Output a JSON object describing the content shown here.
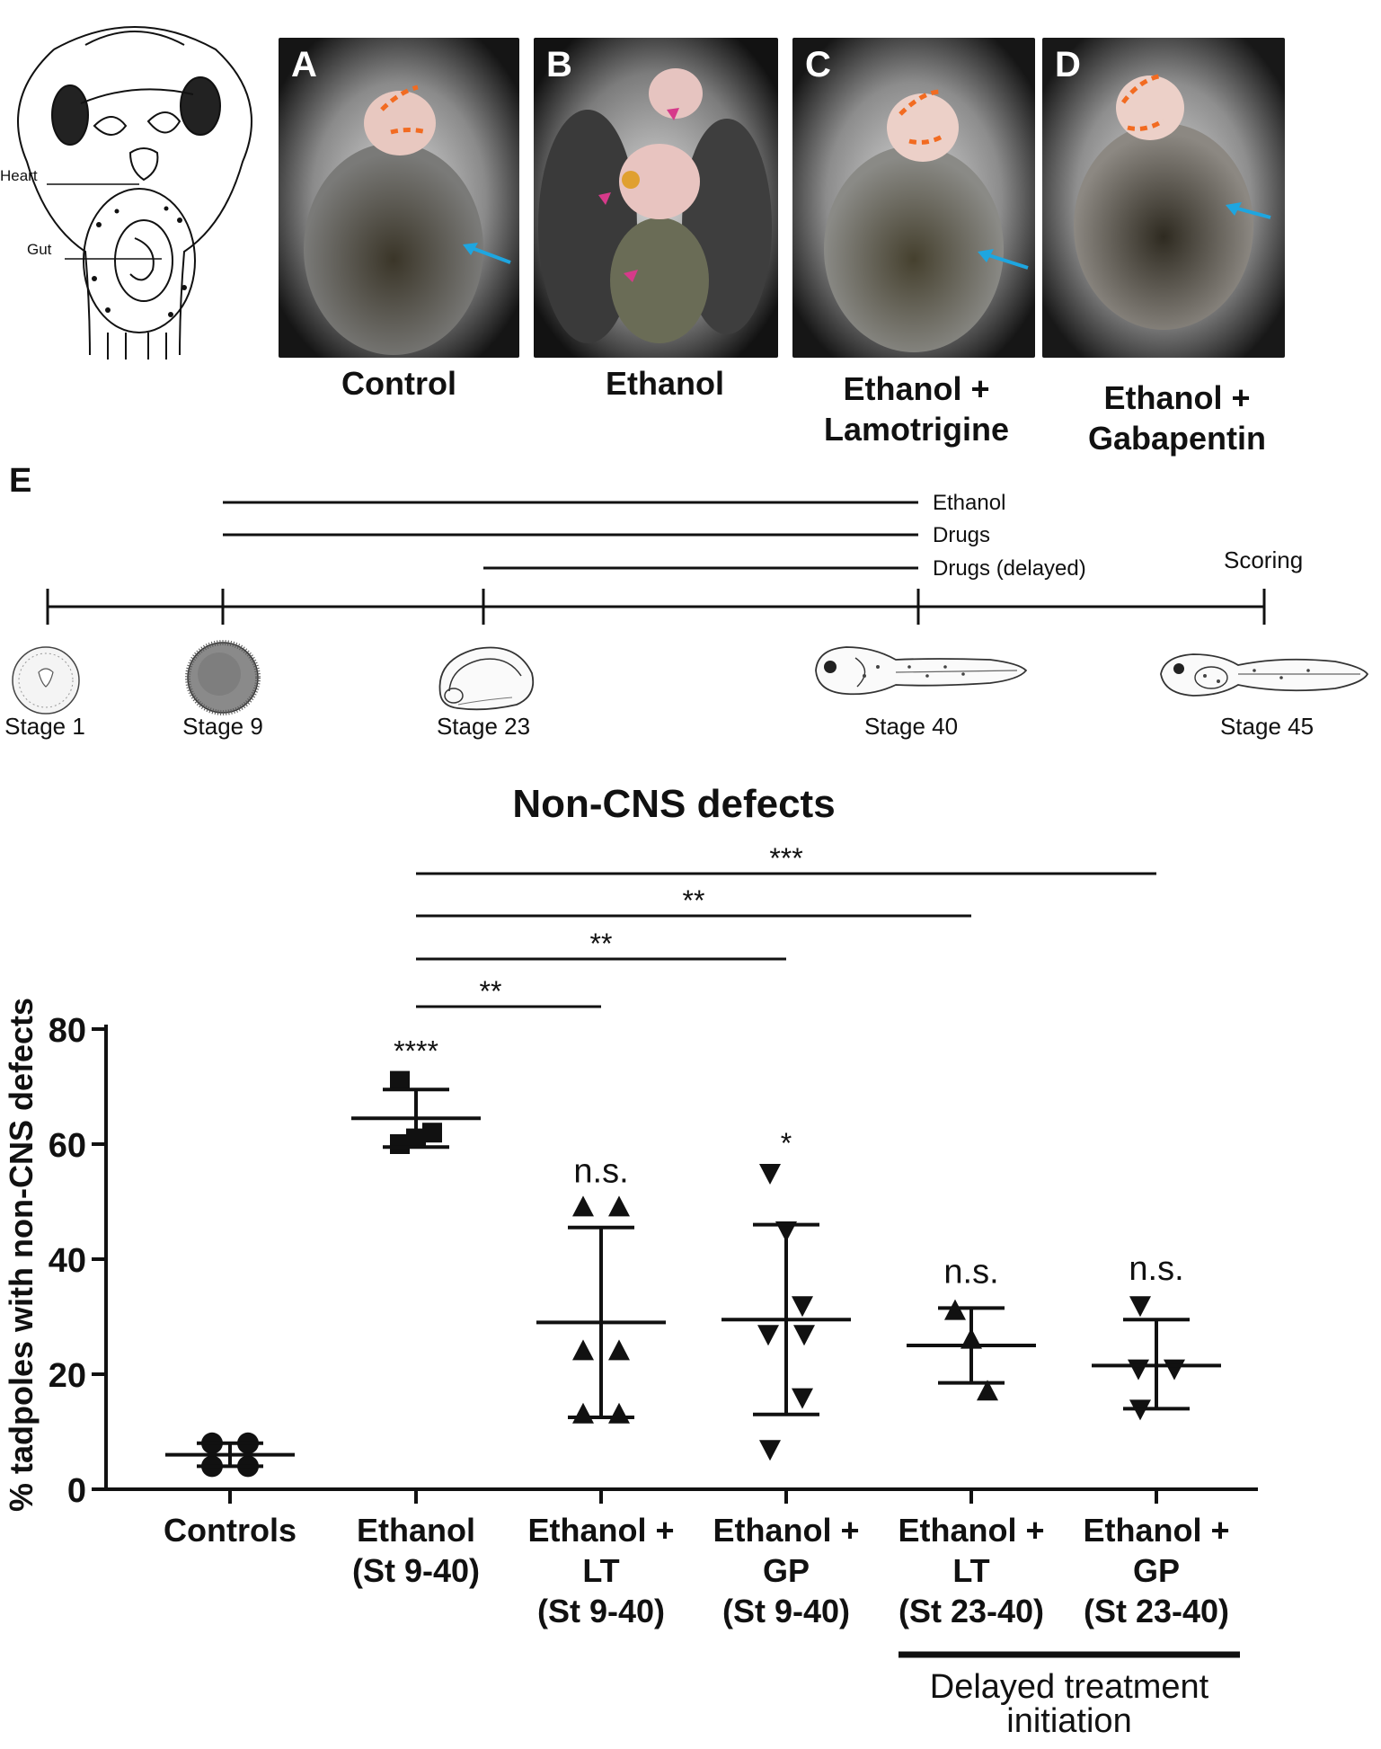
{
  "top_figure": {
    "schematic_labels": {
      "heart": "Heart",
      "gut": "Gut"
    },
    "panels": [
      {
        "letter": "A",
        "caption": [
          "Control"
        ]
      },
      {
        "letter": "B",
        "caption": [
          "Ethanol"
        ]
      },
      {
        "letter": "C",
        "caption": [
          "Ethanol +",
          "Lamotrigine"
        ]
      },
      {
        "letter": "D",
        "caption": [
          "Ethanol +",
          "Gabapentin"
        ]
      }
    ]
  },
  "timeline": {
    "panel_letter": "E",
    "treatments": [
      "Ethanol",
      "Drugs",
      "Drugs (delayed)"
    ],
    "scoring_label": "Scoring",
    "stages": [
      "Stage 1",
      "Stage 9",
      "Stage 23",
      "Stage 40",
      "Stage 45"
    ]
  },
  "chart_data": {
    "type": "scatter",
    "title": "Non-CNS defects",
    "ylabel": "% tadpoles with non-CNS defects",
    "ylim": [
      0,
      80
    ],
    "yticks": [
      0,
      20,
      40,
      60,
      80
    ],
    "categories": [
      [
        "Controls"
      ],
      [
        "Ethanol",
        "(St 9-40)"
      ],
      [
        "Ethanol +",
        "LT",
        "(St 9-40)"
      ],
      [
        "Ethanol +",
        "GP",
        "(St 9-40)"
      ],
      [
        "Ethanol +",
        "LT",
        "(St 23-40)"
      ],
      [
        "Ethanol +",
        "GP",
        "(St 23-40)"
      ]
    ],
    "groups": [
      {
        "marker": "circle",
        "points": [
          4,
          4,
          8,
          8
        ],
        "mean": 6,
        "err_low": 4,
        "err_high": 8,
        "annotation": ""
      },
      {
        "marker": "square",
        "points": [
          71,
          61,
          62,
          60
        ],
        "mean": 64.5,
        "err_low": 59.5,
        "err_high": 69.5,
        "annotation": "****"
      },
      {
        "marker": "triangle-up",
        "points": [
          49,
          49,
          24,
          24,
          13,
          13
        ],
        "mean": 29,
        "err_low": 12.5,
        "err_high": 45.5,
        "annotation": "n.s."
      },
      {
        "marker": "triangle-down",
        "points": [
          55,
          45,
          32,
          27,
          27,
          16,
          7
        ],
        "mean": 29.5,
        "err_low": 13,
        "err_high": 46,
        "annotation": "*"
      },
      {
        "marker": "triangle-up",
        "points": [
          31,
          26,
          17
        ],
        "mean": 25,
        "err_low": 18.5,
        "err_high": 31.5,
        "annotation": "n.s."
      },
      {
        "marker": "triangle-down",
        "points": [
          32,
          21,
          21,
          14
        ],
        "mean": 21.5,
        "err_low": 14,
        "err_high": 29.5,
        "annotation": "n.s."
      }
    ],
    "comparisons": [
      {
        "from": 1,
        "to": 2,
        "label": "**"
      },
      {
        "from": 1,
        "to": 3,
        "label": "**"
      },
      {
        "from": 1,
        "to": 4,
        "label": "**"
      },
      {
        "from": 1,
        "to": 5,
        "label": "***"
      }
    ],
    "bracket_label": [
      "Delayed treatment",
      "initiation"
    ]
  }
}
